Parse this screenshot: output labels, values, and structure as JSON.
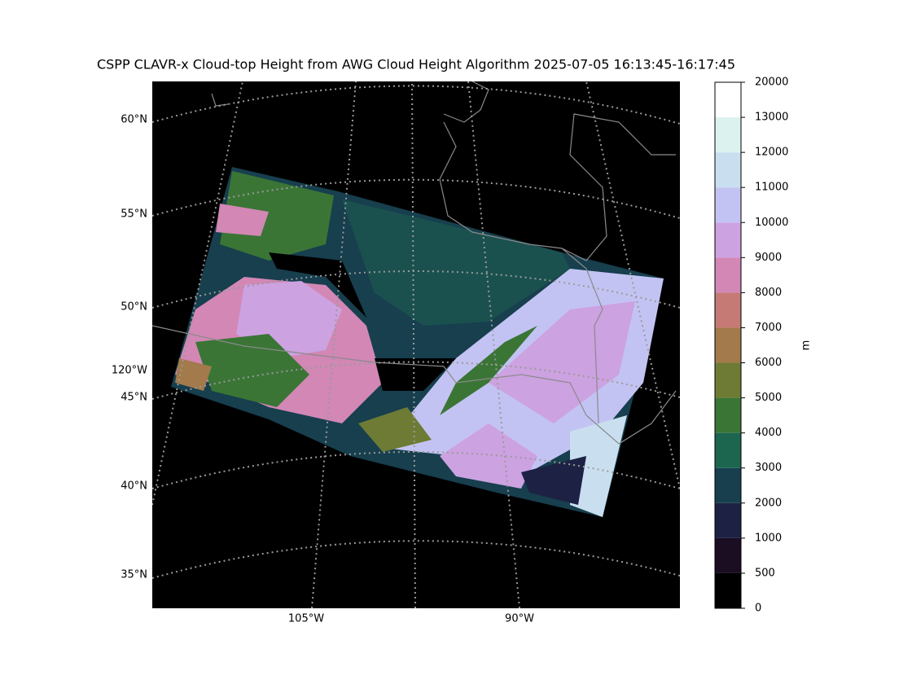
{
  "title": "CSPP CLAVR-x Cloud-top Height from AWG Cloud Height Algorithm 2025-07-05 16:13:45-16:17:45",
  "map": {
    "lat_labels": [
      "60°N",
      "55°N",
      "50°N",
      "45°N",
      "40°N",
      "35°N"
    ],
    "lon_labels": [
      "120°W",
      "105°W",
      "90°W"
    ]
  },
  "colorbar": {
    "label": "m",
    "ticks": [
      0,
      500,
      1000,
      2000,
      3000,
      4000,
      5000,
      6000,
      7000,
      8000,
      9000,
      10000,
      11000,
      12000,
      13000,
      20000
    ],
    "colors": [
      "#000000",
      "#1b0d22",
      "#1d2244",
      "#173f4e",
      "#1c6650",
      "#3a7536",
      "#6e7b35",
      "#a27a4b",
      "#c67a75",
      "#d287b5",
      "#cca2e1",
      "#c3c3f3",
      "#c9dff0",
      "#dcf2ee",
      "#ffffff"
    ]
  }
}
